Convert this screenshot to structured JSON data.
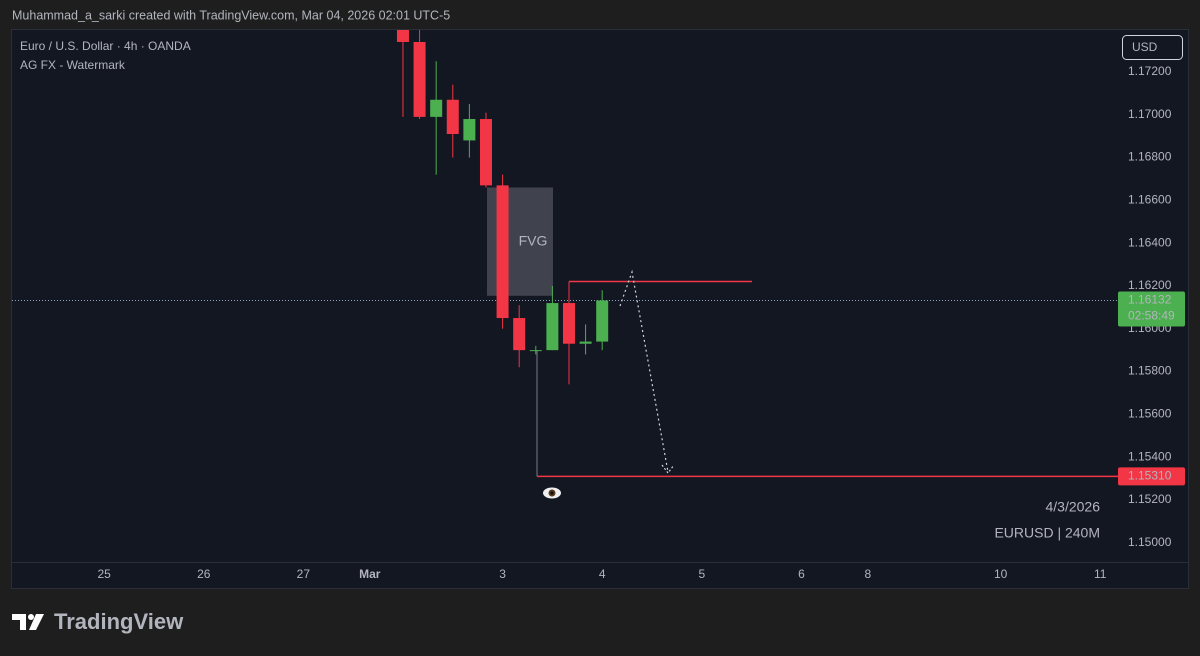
{
  "header": {
    "credit": "Muhammad_a_sarki created with TradingView.com, Mar 04, 2026 02:01 UTC-5",
    "brand": "TradingView"
  },
  "chart_data": {
    "type": "candlestick",
    "title": "Euro / U.S. Dollar · 4h · OANDA",
    "subtitle": "AG FX - Watermark",
    "currency": "USD",
    "watermark": [
      "4/3/2026",
      "EURUSD | 240M"
    ],
    "up_color": "#4caf50",
    "down_color": "#f23645",
    "candles": [
      {
        "open": 1.1742,
        "high": 1.1745,
        "low": 1.1699,
        "close": 1.1734
      },
      {
        "open": 1.1734,
        "high": 1.1745,
        "low": 1.1698,
        "close": 1.1699
      },
      {
        "open": 1.1699,
        "high": 1.1725,
        "low": 1.1672,
        "close": 1.1707
      },
      {
        "open": 1.1707,
        "high": 1.1714,
        "low": 1.168,
        "close": 1.1691
      },
      {
        "open": 1.1688,
        "high": 1.1705,
        "low": 1.168,
        "close": 1.1698
      },
      {
        "open": 1.1698,
        "high": 1.1701,
        "low": 1.1666,
        "close": 1.1667
      },
      {
        "open": 1.1667,
        "high": 1.1672,
        "low": 1.16,
        "close": 1.1605
      },
      {
        "open": 1.1605,
        "high": 1.1611,
        "low": 1.1582,
        "close": 1.159
      },
      {
        "open": 1.159,
        "high": 1.1592,
        "low": 1.1588,
        "close": 1.159
      },
      {
        "open": 1.159,
        "high": 1.162,
        "low": 1.159,
        "close": 1.1612
      },
      {
        "open": 1.1612,
        "high": 1.162,
        "low": 1.1574,
        "close": 1.1593
      },
      {
        "open": 1.1593,
        "high": 1.1602,
        "low": 1.1588,
        "close": 1.1594
      },
      {
        "open": 1.1594,
        "high": 1.1618,
        "low": 1.159,
        "close": 1.16132
      }
    ],
    "ylim": [
      1.1491,
      1.17396
    ],
    "yticks": [
      {
        "value": 1.172,
        "label": "1.17200"
      },
      {
        "value": 1.17,
        "label": "1.17000"
      },
      {
        "value": 1.168,
        "label": "1.16800"
      },
      {
        "value": 1.166,
        "label": "1.16600"
      },
      {
        "value": 1.164,
        "label": "1.16400"
      },
      {
        "value": 1.162,
        "label": "1.16200"
      },
      {
        "value": 1.16,
        "label": "1.16000"
      },
      {
        "value": 1.158,
        "label": "1.15800"
      },
      {
        "value": 1.156,
        "label": "1.15600"
      },
      {
        "value": 1.154,
        "label": "1.15400"
      },
      {
        "value": 1.152,
        "label": "1.15200"
      },
      {
        "value": 1.15,
        "label": "1.15000"
      }
    ],
    "xlim": [
      -23.55,
      43.07
    ],
    "xticks": [
      {
        "value": -18,
        "label": "25"
      },
      {
        "value": -12,
        "label": "26"
      },
      {
        "value": -6,
        "label": "27"
      },
      {
        "value": -2,
        "label": "Mar"
      },
      {
        "value": 6,
        "label": "3"
      },
      {
        "value": 12,
        "label": "4"
      },
      {
        "value": 18,
        "label": "5"
      },
      {
        "value": 24,
        "label": "6"
      },
      {
        "value": 28,
        "label": "8"
      },
      {
        "value": 36,
        "label": "10"
      },
      {
        "value": 42,
        "label": "11"
      }
    ],
    "last_price": {
      "value": 1.16132,
      "label": "1.16132"
    },
    "countdown": "02:58:49",
    "annotations": {
      "fvg": {
        "label": "FVG",
        "top": 1.1666,
        "bottom": 1.16154
      },
      "resistance": 1.16221,
      "target": {
        "value": 1.1531,
        "label": "1.15310"
      }
    }
  }
}
